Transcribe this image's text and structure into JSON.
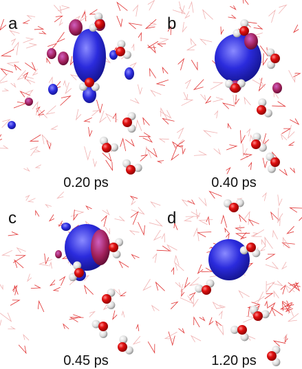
{
  "panels": [
    {
      "label": "a",
      "time": "0.20 ps"
    },
    {
      "label": "b",
      "time": "0.40 ps"
    },
    {
      "label": "c",
      "time": "0.45 ps"
    },
    {
      "label": "d",
      "time": "1.20 ps"
    }
  ]
}
